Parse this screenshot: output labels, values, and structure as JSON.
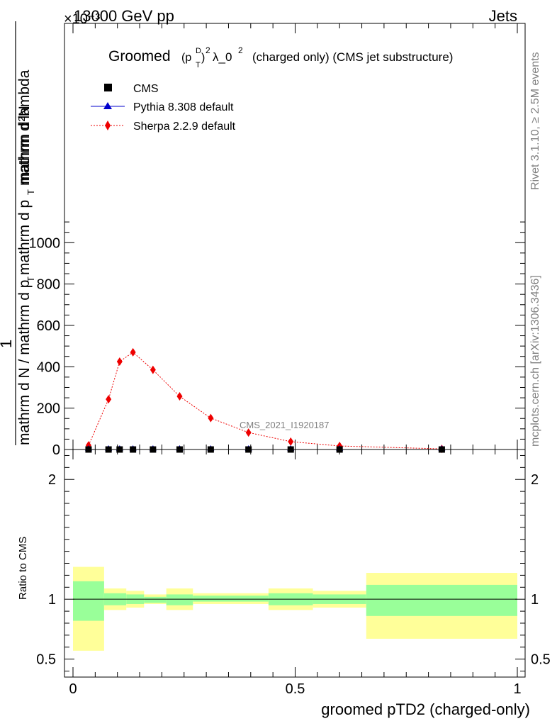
{
  "header": {
    "left": "13000 GeV pp",
    "right": "Jets",
    "exponent": "×10⁻³"
  },
  "side_labels": {
    "rivet": "Rivet 3.1.10, ≥ 2.5M events",
    "mcplots": "mcplots.cern.ch [arXiv:1306.3436]"
  },
  "watermark": "CMS_2021_I1920187",
  "legend": [
    {
      "label": "CMS",
      "color": "#000000",
      "marker": "square"
    },
    {
      "label": "Pythia 8.308 default",
      "color": "#0000cc",
      "marker": "triangle"
    },
    {
      "label": "Sherpa 2.2.9 default",
      "color": "#ee0000",
      "marker": "diamond"
    }
  ],
  "chart_data": [
    {
      "type": "scatter",
      "title_parts": {
        "prefix": "Groomed",
        "formula_base": "(p",
        "formula_sup": "D",
        "formula_sub": "T",
        "formula_close": ")",
        "formula_sup2": "2",
        "lambda": "λ_0",
        "lambda_sup": "2",
        "suffix": "(charged only) (CMS jet substructure)"
      },
      "ylabel": {
        "numerator": "1",
        "numerator2": "mathrm d²N",
        "denominator": "mathrm d N / mathrm d p",
        "denominator_sub": "T",
        "denominator2": "mathrm d p",
        "denominator2_sub": "T",
        "denominator2_rest": " mathrm d lambda"
      },
      "xlim": [
        0,
        1
      ],
      "ylim": [
        0,
        2060
      ],
      "y_ticks": [
        0,
        200,
        400,
        600,
        800,
        1000
      ],
      "y_tick_labels": [
        "0",
        "200",
        "400",
        "600",
        "800",
        "1000"
      ],
      "y_scale_note": "values ×10⁻³",
      "series": [
        {
          "name": "CMS",
          "x": [
            0.035,
            0.08,
            0.105,
            0.135,
            0.18,
            0.24,
            0.31,
            0.395,
            0.49,
            0.6,
            0.83
          ],
          "y": [
            0,
            0,
            0,
            0,
            0,
            0,
            0,
            0,
            0,
            0,
            0
          ]
        },
        {
          "name": "Pythia 8.308 default",
          "x": [
            0.035,
            0.08,
            0.105,
            0.135,
            0.18,
            0.24,
            0.31,
            0.395,
            0.49,
            0.6,
            0.83
          ],
          "y": [
            0,
            0,
            0,
            0,
            0,
            0,
            0,
            0,
            0,
            0,
            0
          ]
        },
        {
          "name": "Sherpa 2.2.9 default",
          "x": [
            0.035,
            0.08,
            0.105,
            0.135,
            0.18,
            0.24,
            0.31,
            0.395,
            0.49,
            0.6,
            0.83
          ],
          "y": [
            20,
            243,
            425,
            470,
            385,
            257,
            152,
            82,
            38,
            17,
            3
          ]
        }
      ]
    },
    {
      "type": "area",
      "ylabel": "Ratio to CMS",
      "xlabel": "groomed pTD2 (charged-only)",
      "xlim": [
        0,
        1
      ],
      "ylim": [
        0.35,
        2.25
      ],
      "x_ticks": [
        0,
        0.5,
        1
      ],
      "x_tick_labels": [
        "0",
        "0.5",
        "1"
      ],
      "y_ticks": [
        0.5,
        1,
        2
      ],
      "y_tick_labels": [
        "0.5",
        "1",
        "2"
      ],
      "reference_line": 1,
      "bins": [
        {
          "lo": 0.0,
          "hi": 0.07,
          "stat": [
            0.82,
            1.15
          ],
          "total": [
            0.57,
            1.27
          ]
        },
        {
          "lo": 0.07,
          "hi": 0.12,
          "stat": [
            0.95,
            1.05
          ],
          "total": [
            0.91,
            1.09
          ]
        },
        {
          "lo": 0.12,
          "hi": 0.16,
          "stat": [
            0.96,
            1.04
          ],
          "total": [
            0.93,
            1.07
          ]
        },
        {
          "lo": 0.16,
          "hi": 0.21,
          "stat": [
            0.97,
            1.02
          ],
          "total": [
            0.96,
            1.04
          ]
        },
        {
          "lo": 0.21,
          "hi": 0.27,
          "stat": [
            0.95,
            1.04
          ],
          "total": [
            0.91,
            1.09
          ]
        },
        {
          "lo": 0.27,
          "hi": 0.44,
          "stat": [
            0.98,
            1.03
          ],
          "total": [
            0.96,
            1.05
          ]
        },
        {
          "lo": 0.44,
          "hi": 0.54,
          "stat": [
            0.95,
            1.05
          ],
          "total": [
            0.91,
            1.09
          ]
        },
        {
          "lo": 0.54,
          "hi": 0.66,
          "stat": [
            0.96,
            1.04
          ],
          "total": [
            0.93,
            1.07
          ]
        },
        {
          "lo": 0.66,
          "hi": 1.0,
          "stat": [
            0.86,
            1.12
          ],
          "total": [
            0.67,
            1.22
          ]
        }
      ],
      "colors": {
        "stat": "#99ff99",
        "total": "#ffff99"
      }
    }
  ]
}
